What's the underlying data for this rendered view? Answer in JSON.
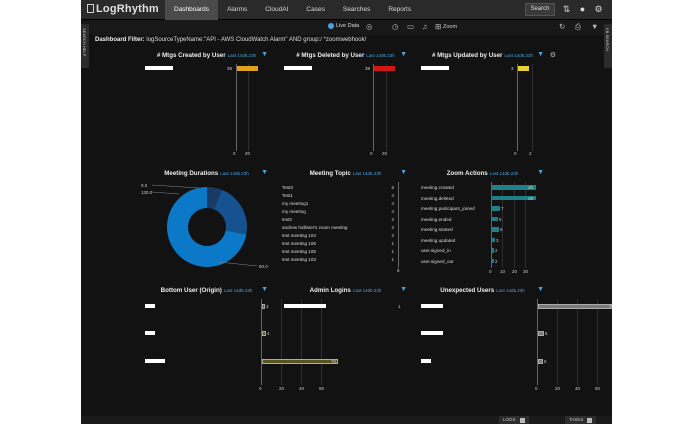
{
  "app": {
    "name": "LogRhythm"
  },
  "nav": [
    "Dashboards",
    "Alarms",
    "CloudAI",
    "Cases",
    "Searches",
    "Reports"
  ],
  "topbar": {
    "search_label": "Search"
  },
  "toolbar": {
    "live_label": "Live Data",
    "zoom_label": "Zoom"
  },
  "filter": {
    "label": "Dashboard Filter:",
    "text": "logSourceTypeName:\"API - AWS CloudWatch Alarm\" AND group:/ *zoomwebhook/"
  },
  "side_tabs": {
    "left": "SEARCH HELP",
    "right": "KB SEARCH"
  },
  "widgets": {
    "created": {
      "title": "# Mtgs Created by User",
      "sub": "Last 14d6.23h",
      "value": "39",
      "ticks": [
        "0",
        "20"
      ],
      "bar_color": "#e0a020",
      "bar_fraction": 0.97
    },
    "deleted": {
      "title": "# Mtgs Deleted by User",
      "sub": "Last 14d6.23h",
      "value": "39",
      "ticks": [
        "0",
        "20"
      ],
      "bar_color": "#d01818",
      "bar_fraction": 0.97
    },
    "updated": {
      "title": "# Mtgs Updated by User",
      "sub": "Last 14d6.23h",
      "value": "3",
      "ticks": [
        "0",
        "2"
      ],
      "bar_color": "#e8d030",
      "bar_fraction": 0.95
    },
    "durations": {
      "title": "Meeting Durations",
      "sub": "Last 14d6.23h",
      "labels": [
        "0.0",
        "130.0",
        "60.0"
      ],
      "slices": [
        0.06,
        0.22,
        0.72
      ],
      "colors": [
        "#1a3a66",
        "#15528f",
        "#0b79c7"
      ]
    },
    "topic": {
      "title": "Meeting Topic",
      "sub": "Last 14d6.23h",
      "rows": [
        {
          "label": "Test3",
          "value": "6"
        },
        {
          "label": "Test1",
          "value": "4"
        },
        {
          "label": "my meeting1",
          "value": "4"
        },
        {
          "label": "my meeting",
          "value": "4"
        },
        {
          "label": "test2",
          "value": "2"
        },
        {
          "label": "andrew hollister's zoom meeting",
          "value": "2"
        },
        {
          "label": "test meeting 104",
          "value": "2"
        },
        {
          "label": "test meeting 106",
          "value": "1"
        },
        {
          "label": "test meeting 105",
          "value": "1"
        },
        {
          "label": "test meeting 103",
          "value": "1"
        }
      ],
      "total": "8"
    },
    "zoom_actions": {
      "title": "Zoom Actions",
      "sub": "Last 14d6.23h",
      "rows": [
        {
          "label": "meeting.created",
          "value": 39
        },
        {
          "label": "meeting.deleted",
          "value": 39
        },
        {
          "label": "meeting.participant_joined",
          "value": 7
        },
        {
          "label": "meeting.ended",
          "value": 5
        },
        {
          "label": "meeting.started",
          "value": 6
        },
        {
          "label": "meeting.updated",
          "value": 3
        },
        {
          "label": "user.signed_in",
          "value": 2
        },
        {
          "label": "user.signed_out",
          "value": 2
        }
      ],
      "ticks": [
        "0",
        "10",
        "20",
        "30"
      ],
      "max": 39
    },
    "bottom_user": {
      "title": "Bottom User (Origin)",
      "sub": "Last 14d6.23h",
      "bars": [
        {
          "value": 3,
          "label": "3"
        },
        {
          "value": 4,
          "label": "4"
        },
        {
          "value": 76,
          "label": "76"
        }
      ],
      "ticks": [
        "0",
        "20",
        "40",
        "60"
      ],
      "max": 80,
      "bar_color": "#5a5420"
    },
    "admin_logins": {
      "title": "Admin Logins",
      "sub": "Last 14d6.23h",
      "value": "1"
    },
    "unexpected": {
      "title": "Unexpected Users",
      "sub": "Last 14d6.23h",
      "bars": [
        {
          "value": 78,
          "label": "78"
        },
        {
          "value": 6,
          "label": "6"
        },
        {
          "value": 5,
          "label": "5"
        }
      ],
      "ticks": [
        "0",
        "20",
        "40",
        "60"
      ],
      "max": 80,
      "bar_color": "#7a7a7a"
    }
  },
  "footer": {
    "logs": "LOGS",
    "tasks": "TASKS"
  }
}
